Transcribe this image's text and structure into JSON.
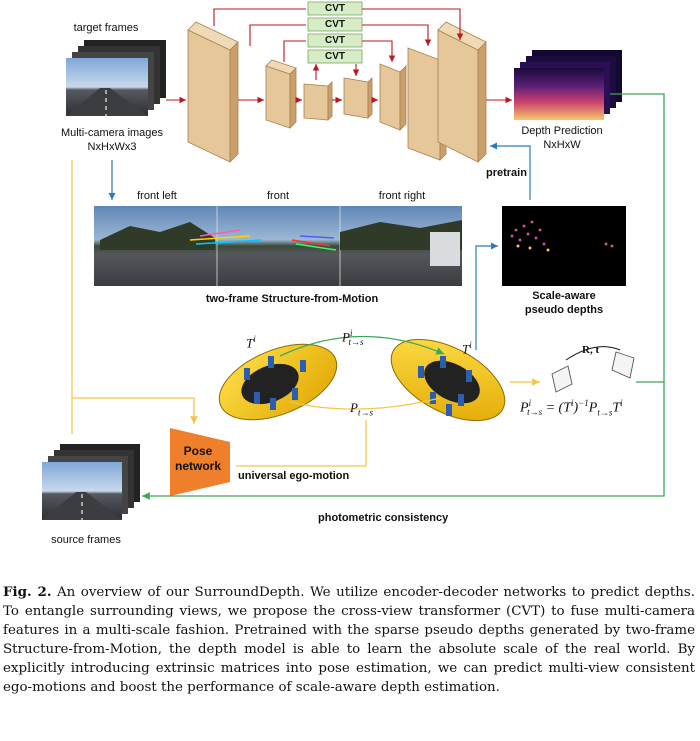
{
  "figure": {
    "target_frames": "target frames",
    "multi_camera": "Multi-camera images",
    "multi_camera_dims": "NxHxWx3",
    "cvt_label": "CVT",
    "depth_prediction": "Depth Prediction",
    "depth_dims": "NxHxW",
    "pretrain": "pretrain",
    "front_left": "front left",
    "front": "front",
    "front_right": "front right",
    "sfm": "two-frame Structure-from-Motion",
    "scale_aware_1": "Scale-aware",
    "scale_aware_2": "pseudo depths",
    "pose_1": "Pose",
    "pose_2": "network",
    "ego_motion": "universal ego-motion",
    "photometric": "photometric consistency",
    "source_frames": "source frames",
    "rt_label": "R, t",
    "colors": {
      "encoder_face": "#e6c79a",
      "encoder_side": "#c9a06a",
      "cvt_fill": "#d8ecc8",
      "arrow_red": "#c0151b",
      "arrow_blue": "#2a7bbf",
      "arrow_yellow": "#f2c84b",
      "arrow_green": "#3aa85a",
      "pose_orange": "#ef7f2a"
    }
  },
  "caption": {
    "label": "Fig. 2.",
    "text": "An overview of our SurroundDepth. We utilize encoder-decoder networks to predict depths. To entangle surrounding views, we propose the cross-view transformer (CVT) to fuse multi-camera features in a multi-scale fashion. Pretrained with the sparse pseudo depths generated by two-frame Structure-from-Motion, the depth model is able to learn the absolute scale of the real world. By explicitly introducing extrinsic matrices into pose estimation, we can predict multi-view consistent ego-motions and boost the performance of scale-aware depth estimation."
  }
}
